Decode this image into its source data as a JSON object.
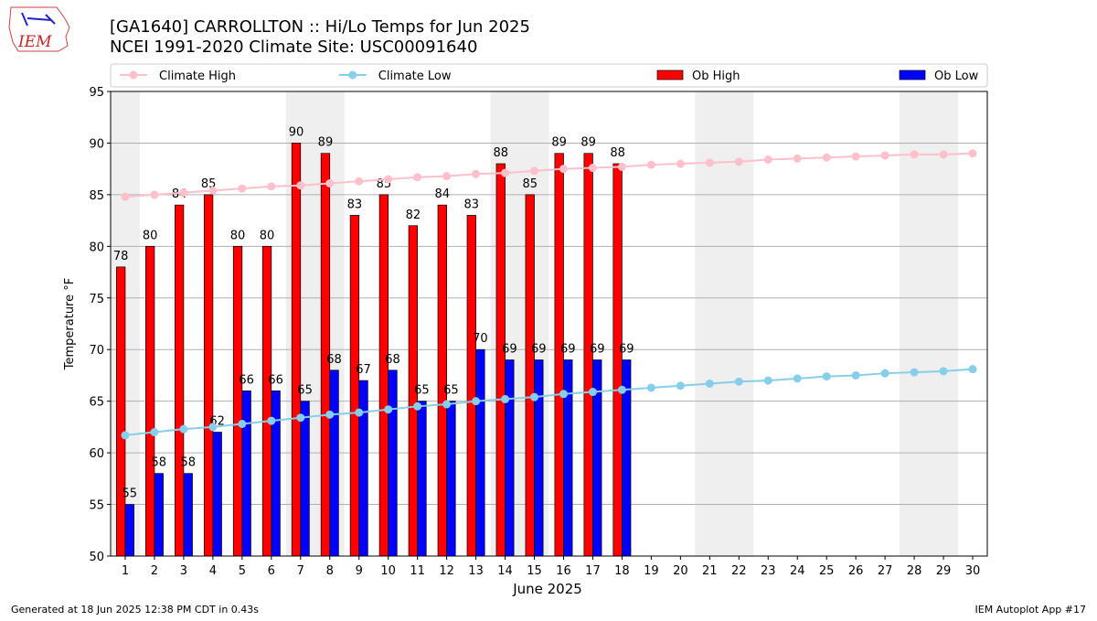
{
  "chart_data": {
    "type": "bar",
    "title": "[GA1640] CARROLLTON :: Hi/Lo Temps for Jun 2025",
    "subtitle": "NCEI 1991-2020 Climate Site: USC00091640",
    "xlabel": "June 2025",
    "ylabel": "Temperature °F",
    "footer_left": "Generated at 18 Jun 2025 12:38 PM CDT in 0.43s",
    "footer_right": "IEM Autoplot App #17",
    "logo": "IEM",
    "x": [
      1,
      2,
      3,
      4,
      5,
      6,
      7,
      8,
      9,
      10,
      11,
      12,
      13,
      14,
      15,
      16,
      17,
      18,
      19,
      20,
      21,
      22,
      23,
      24,
      25,
      26,
      27,
      28,
      29,
      30
    ],
    "xlim": [
      0.5,
      30.5
    ],
    "xticks": [
      1,
      2,
      3,
      4,
      5,
      6,
      7,
      8,
      9,
      10,
      11,
      12,
      13,
      14,
      15,
      16,
      17,
      18,
      19,
      20,
      21,
      22,
      23,
      24,
      25,
      26,
      27,
      28,
      29,
      30
    ],
    "ylim": [
      50,
      95
    ],
    "yticks": [
      50,
      55,
      60,
      65,
      70,
      75,
      80,
      85,
      90,
      95
    ],
    "grid": true,
    "legend": "top",
    "series": [
      {
        "name": "Climate High",
        "kind": "line",
        "color": "#ffc0cb",
        "values": [
          84.8,
          85.0,
          85.2,
          85.4,
          85.6,
          85.8,
          85.9,
          86.1,
          86.3,
          86.5,
          86.7,
          86.8,
          87.0,
          87.1,
          87.3,
          87.5,
          87.6,
          87.7,
          87.9,
          88.0,
          88.1,
          88.2,
          88.4,
          88.5,
          88.6,
          88.7,
          88.8,
          88.9,
          88.9,
          89.0
        ]
      },
      {
        "name": "Climate Low",
        "kind": "line",
        "color": "#87ceeb",
        "values": [
          61.7,
          62.0,
          62.3,
          62.5,
          62.8,
          63.1,
          63.4,
          63.7,
          63.9,
          64.2,
          64.5,
          64.7,
          65.0,
          65.2,
          65.4,
          65.7,
          65.9,
          66.1,
          66.3,
          66.5,
          66.7,
          66.9,
          67.0,
          67.2,
          67.4,
          67.5,
          67.7,
          67.8,
          67.9,
          68.1
        ]
      },
      {
        "name": "Ob High",
        "kind": "bar",
        "color": "#ff0000",
        "values": [
          78,
          80,
          84,
          85,
          80,
          80,
          90,
          89,
          83,
          85,
          82,
          84,
          83,
          88,
          85,
          89,
          89,
          88,
          null,
          null,
          null,
          null,
          null,
          null,
          null,
          null,
          null,
          null,
          null,
          null
        ]
      },
      {
        "name": "Ob Low",
        "kind": "bar",
        "color": "#0000ff",
        "values": [
          55,
          58,
          58,
          62,
          66,
          66,
          65,
          68,
          67,
          68,
          65,
          65,
          70,
          69,
          69,
          69,
          69,
          69,
          null,
          null,
          null,
          null,
          null,
          null,
          null,
          null,
          null,
          null,
          null,
          null
        ]
      }
    ]
  }
}
